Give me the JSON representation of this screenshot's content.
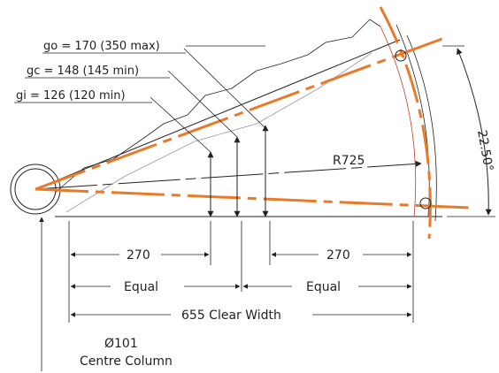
{
  "labels": {
    "go": "go = 170 (350 max)",
    "gc": "gc = 148 (145 min)",
    "gi": "gi = 126 (120 min)",
    "radius": "R725",
    "angle": "22.50°",
    "dim_left": "270",
    "dim_right": "270",
    "equal_left": "Equal",
    "equal_right": "Equal",
    "clear_width": "655 Clear Width",
    "column_diameter": "Ø101",
    "column_label": "Centre Column"
  },
  "colors": {
    "line": "#222222",
    "centreline": "#e87a2a",
    "stringer": "#c0392b"
  }
}
